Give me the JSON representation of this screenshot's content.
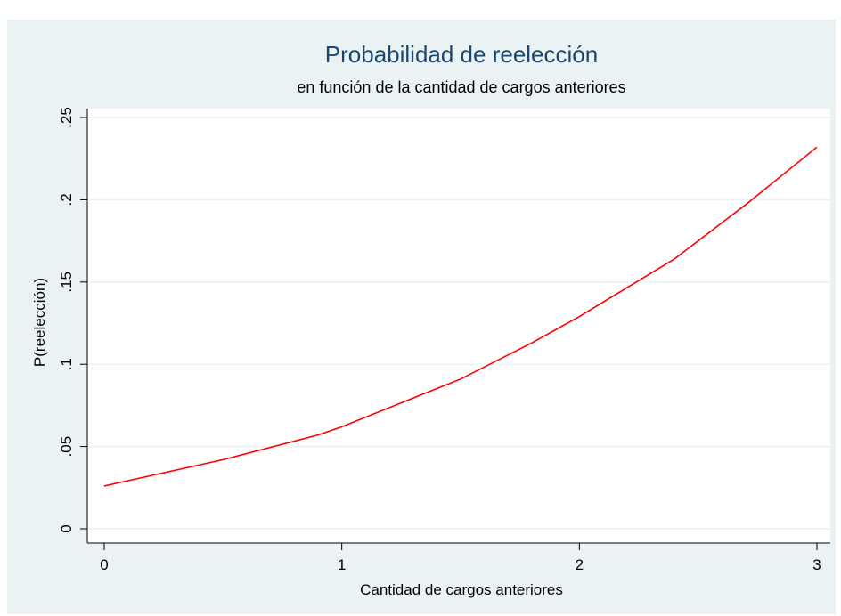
{
  "chart_data": {
    "type": "line",
    "title": "Probabilidad de reelección",
    "subtitle": "en función de la cantidad de cargos anteriores",
    "x_label": "Cantidad de cargos anteriores",
    "y_label": "P(reelección)",
    "x": [
      0,
      0.5,
      0.9,
      1,
      1.5,
      1.8,
      2,
      2.4,
      2.7,
      3
    ],
    "series": [
      {
        "name": "P(reelección)",
        "color": "#ff0000",
        "values": [
          0.026,
          0.042,
          0.057,
          0.062,
          0.091,
          0.113,
          0.129,
          0.164,
          0.197,
          0.232
        ]
      }
    ],
    "xlim": [
      0,
      3
    ],
    "xticks": [
      0,
      1,
      2,
      3
    ],
    "ylim": [
      0,
      0.25
    ],
    "yticks": [
      0,
      {
        "value": 0.05,
        "label": ".05"
      },
      {
        "value": 0.1,
        "label": ".1"
      },
      {
        "value": 0.15,
        "label": ".15"
      },
      {
        "value": 0.2,
        "label": ".2"
      },
      {
        "value": 0.25,
        "label": ".25"
      }
    ],
    "grid": true
  }
}
